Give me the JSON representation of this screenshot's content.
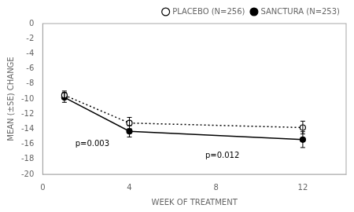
{
  "chart_data": {
    "type": "line",
    "xlabel": "WEEK OF TREATMENT",
    "ylabel": "MEAN (±SE) CHANGE",
    "x": [
      1,
      4,
      12
    ],
    "series": [
      {
        "name": "PLACEBO (N=256)",
        "color": "#000000",
        "values": [
          -9.5,
          -13.2,
          -13.8
        ],
        "yerr": [
          0.55,
          0.75,
          0.85
        ],
        "marker": "open_circle",
        "line_style": "dotted"
      },
      {
        "name": "SANCTURA (N=253)",
        "color": "#000000",
        "values": [
          -9.8,
          -14.3,
          -15.4
        ],
        "yerr": [
          0.65,
          0.75,
          1.05
        ],
        "marker": "circle",
        "line_style": "solid"
      }
    ],
    "annotations": [
      {
        "text": "p=0.003",
        "x": 1.5,
        "y": -16.2
      },
      {
        "text": "p=0.012",
        "x": 7.5,
        "y": -17.8
      }
    ],
    "xlim": [
      0,
      14
    ],
    "ylim": [
      -20,
      0
    ],
    "xticks": [
      0,
      4,
      8,
      12
    ],
    "yticks": [
      0,
      -2,
      -4,
      -6,
      -8,
      -10,
      -12,
      -14,
      -16,
      -18,
      -20
    ],
    "grid": false,
    "legend": "upper right"
  }
}
